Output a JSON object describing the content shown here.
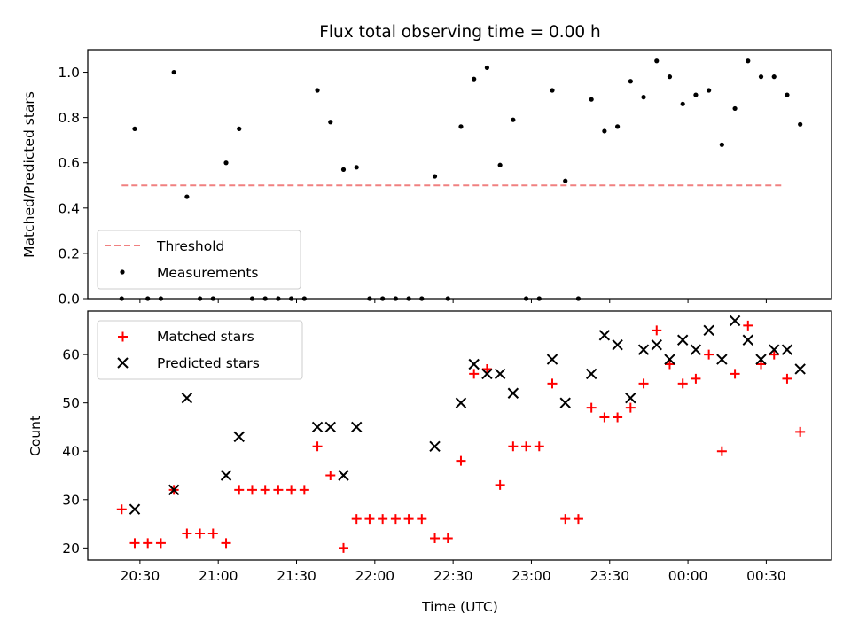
{
  "colors": {
    "threshold": "#f08080",
    "measurement": "#000000",
    "matched": "#ff0000",
    "predicted": "#000000"
  },
  "chart_data": [
    {
      "type": "scatter",
      "title": "Flux total observing time = 0.00 h",
      "xlabel": "",
      "ylabel": "Matched/Predicted stars",
      "xlim": [
        "20:10",
        "00:55"
      ],
      "ylim": [
        0,
        1.1
      ],
      "yticks": [
        "0.0",
        "0.2",
        "0.4",
        "0.6",
        "0.8",
        "1.0"
      ],
      "legend": {
        "placement": "lower-left",
        "entries": [
          "Threshold",
          "Measurements"
        ]
      },
      "threshold": {
        "name": "Threshold",
        "value": 0.5,
        "x_range": [
          "20:23",
          "00:37"
        ],
        "style": "dashed"
      },
      "series": [
        {
          "name": "Measurements",
          "marker": "dot",
          "points": [
            [
              "20:23",
              0.0
            ],
            [
              "20:28",
              0.75
            ],
            [
              "20:33",
              0.0
            ],
            [
              "20:38",
              0.0
            ],
            [
              "20:43",
              1.0
            ],
            [
              "20:48",
              0.45
            ],
            [
              "20:53",
              0.0
            ],
            [
              "20:58",
              0.0
            ],
            [
              "21:03",
              0.6
            ],
            [
              "21:08",
              0.75
            ],
            [
              "21:13",
              0.0
            ],
            [
              "21:18",
              0.0
            ],
            [
              "21:23",
              0.0
            ],
            [
              "21:28",
              0.0
            ],
            [
              "21:33",
              0.0
            ],
            [
              "21:38",
              0.92
            ],
            [
              "21:43",
              0.78
            ],
            [
              "21:48",
              0.57
            ],
            [
              "21:53",
              0.58
            ],
            [
              "21:58",
              0.0
            ],
            [
              "22:03",
              0.0
            ],
            [
              "22:08",
              0.0
            ],
            [
              "22:13",
              0.0
            ],
            [
              "22:18",
              0.0
            ],
            [
              "22:23",
              0.54
            ],
            [
              "22:28",
              0.0
            ],
            [
              "22:33",
              0.76
            ],
            [
              "22:38",
              0.97
            ],
            [
              "22:43",
              1.02
            ],
            [
              "22:48",
              0.59
            ],
            [
              "22:53",
              0.79
            ],
            [
              "22:58",
              0.0
            ],
            [
              "23:03",
              0.0
            ],
            [
              "23:08",
              0.92
            ],
            [
              "23:13",
              0.52
            ],
            [
              "23:18",
              0.0
            ],
            [
              "23:23",
              0.88
            ],
            [
              "23:28",
              0.74
            ],
            [
              "23:33",
              0.76
            ],
            [
              "23:38",
              0.96
            ],
            [
              "23:43",
              0.89
            ],
            [
              "23:48",
              1.05
            ],
            [
              "23:53",
              0.98
            ],
            [
              "23:58",
              0.86
            ],
            [
              "00:03",
              0.9
            ],
            [
              "00:08",
              0.92
            ],
            [
              "00:13",
              0.68
            ],
            [
              "00:18",
              0.84
            ],
            [
              "00:23",
              1.05
            ],
            [
              "00:28",
              0.98
            ],
            [
              "00:33",
              0.98
            ],
            [
              "00:38",
              0.9
            ],
            [
              "00:43",
              0.77
            ]
          ]
        }
      ]
    },
    {
      "type": "scatter",
      "title": "",
      "xlabel": "Time (UTC)",
      "ylabel": "Count",
      "xlim": [
        "20:10",
        "00:55"
      ],
      "ylim": [
        17.5,
        69
      ],
      "yticks": [
        "20",
        "30",
        "40",
        "50",
        "60"
      ],
      "xticks": [
        "20:30",
        "21:00",
        "21:30",
        "22:00",
        "22:30",
        "23:00",
        "23:30",
        "00:00",
        "00:30"
      ],
      "legend": {
        "placement": "top-left",
        "entries": [
          "Matched stars",
          "Predicted stars"
        ]
      },
      "series": [
        {
          "name": "Matched stars",
          "marker": "plus",
          "points": [
            [
              "20:23",
              28
            ],
            [
              "20:28",
              21
            ],
            [
              "20:33",
              21
            ],
            [
              "20:38",
              21
            ],
            [
              "20:43",
              32
            ],
            [
              "20:48",
              23
            ],
            [
              "20:53",
              23
            ],
            [
              "20:58",
              23
            ],
            [
              "21:03",
              21
            ],
            [
              "21:08",
              32
            ],
            [
              "21:13",
              32
            ],
            [
              "21:18",
              32
            ],
            [
              "21:23",
              32
            ],
            [
              "21:28",
              32
            ],
            [
              "21:33",
              32
            ],
            [
              "21:38",
              41
            ],
            [
              "21:43",
              35
            ],
            [
              "21:48",
              20
            ],
            [
              "21:53",
              26
            ],
            [
              "21:58",
              26
            ],
            [
              "22:03",
              26
            ],
            [
              "22:08",
              26
            ],
            [
              "22:13",
              26
            ],
            [
              "22:18",
              26
            ],
            [
              "22:23",
              22
            ],
            [
              "22:28",
              22
            ],
            [
              "22:33",
              38
            ],
            [
              "22:38",
              56
            ],
            [
              "22:43",
              57
            ],
            [
              "22:48",
              33
            ],
            [
              "22:53",
              41
            ],
            [
              "22:58",
              41
            ],
            [
              "23:03",
              41
            ],
            [
              "23:08",
              54
            ],
            [
              "23:13",
              26
            ],
            [
              "23:18",
              26
            ],
            [
              "23:23",
              49
            ],
            [
              "23:28",
              47
            ],
            [
              "23:33",
              47
            ],
            [
              "23:38",
              49
            ],
            [
              "23:43",
              54
            ],
            [
              "23:48",
              65
            ],
            [
              "23:53",
              58
            ],
            [
              "23:58",
              54
            ],
            [
              "00:03",
              55
            ],
            [
              "00:08",
              60
            ],
            [
              "00:13",
              40
            ],
            [
              "00:18",
              56
            ],
            [
              "00:23",
              66
            ],
            [
              "00:28",
              58
            ],
            [
              "00:33",
              60
            ],
            [
              "00:38",
              55
            ],
            [
              "00:43",
              44
            ]
          ]
        },
        {
          "name": "Predicted stars",
          "marker": "x",
          "points": [
            [
              "20:28",
              28
            ],
            [
              "20:43",
              32
            ],
            [
              "20:48",
              51
            ],
            [
              "21:03",
              35
            ],
            [
              "21:08",
              43
            ],
            [
              "21:38",
              45
            ],
            [
              "21:43",
              45
            ],
            [
              "21:48",
              35
            ],
            [
              "21:53",
              45
            ],
            [
              "22:23",
              41
            ],
            [
              "22:33",
              50
            ],
            [
              "22:38",
              58
            ],
            [
              "22:43",
              56
            ],
            [
              "22:48",
              56
            ],
            [
              "22:53",
              52
            ],
            [
              "23:08",
              59
            ],
            [
              "23:13",
              50
            ],
            [
              "23:23",
              56
            ],
            [
              "23:28",
              64
            ],
            [
              "23:33",
              62
            ],
            [
              "23:38",
              51
            ],
            [
              "23:43",
              61
            ],
            [
              "23:48",
              62
            ],
            [
              "23:53",
              59
            ],
            [
              "23:58",
              63
            ],
            [
              "00:03",
              61
            ],
            [
              "00:08",
              65
            ],
            [
              "00:13",
              59
            ],
            [
              "00:18",
              67
            ],
            [
              "00:23",
              63
            ],
            [
              "00:28",
              59
            ],
            [
              "00:33",
              61
            ],
            [
              "00:38",
              61
            ],
            [
              "00:43",
              57
            ]
          ]
        }
      ]
    }
  ]
}
